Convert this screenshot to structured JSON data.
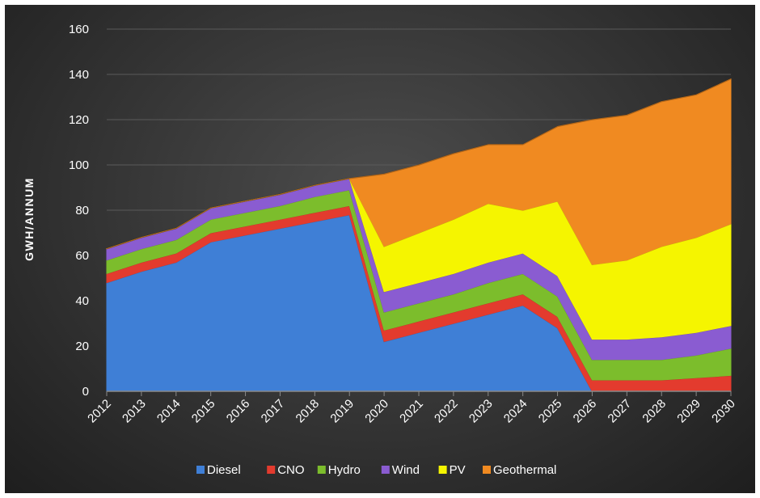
{
  "chart_data": {
    "type": "area",
    "stacked": true,
    "title": "",
    "xlabel": "",
    "ylabel": "GWH/ANNUM",
    "ylim": [
      0,
      160
    ],
    "yticks": [
      0,
      20,
      40,
      60,
      80,
      100,
      120,
      140,
      160
    ],
    "grid": true,
    "legend_position": "bottom",
    "categories": [
      "2012",
      "2013",
      "2014",
      "2015",
      "2016",
      "2017",
      "2018",
      "2019",
      "2020",
      "2021",
      "2022",
      "2023",
      "2024",
      "2025",
      "2026",
      "2027",
      "2028",
      "2029",
      "2030"
    ],
    "series": [
      {
        "name": "Diesel",
        "color": "#3f7fd6",
        "values": [
          48,
          53,
          57,
          66,
          69,
          72,
          75,
          78,
          22,
          26,
          30,
          34,
          38,
          28,
          0,
          0,
          0,
          0,
          0
        ]
      },
      {
        "name": "CNO",
        "color": "#e33b2e",
        "values": [
          4,
          4,
          4,
          4,
          4,
          4,
          4,
          4,
          5,
          5,
          5,
          5,
          5,
          5,
          5,
          5,
          5,
          6,
          7
        ]
      },
      {
        "name": "Hydro",
        "color": "#7cbd2c",
        "values": [
          6,
          6,
          6,
          6,
          6,
          6,
          7,
          7,
          8,
          8,
          8,
          9,
          9,
          9,
          9,
          9,
          9,
          10,
          12
        ]
      },
      {
        "name": "Wind",
        "color": "#8a5cd1",
        "values": [
          5,
          5,
          5,
          5,
          5,
          5,
          5,
          5,
          9,
          9,
          9,
          9,
          9,
          9,
          9,
          9,
          10,
          10,
          10
        ]
      },
      {
        "name": "PV",
        "color": "#f5f500",
        "values": [
          0,
          0,
          0,
          0,
          0,
          0,
          0,
          0,
          20,
          22,
          24,
          26,
          19,
          33,
          33,
          35,
          40,
          42,
          45
        ]
      },
      {
        "name": "Geothermal",
        "color": "#f08a21",
        "values": [
          0,
          0,
          0,
          0,
          0,
          0,
          0,
          0,
          32,
          30,
          29,
          26,
          29,
          33,
          64,
          64,
          64,
          63,
          64
        ]
      }
    ]
  }
}
